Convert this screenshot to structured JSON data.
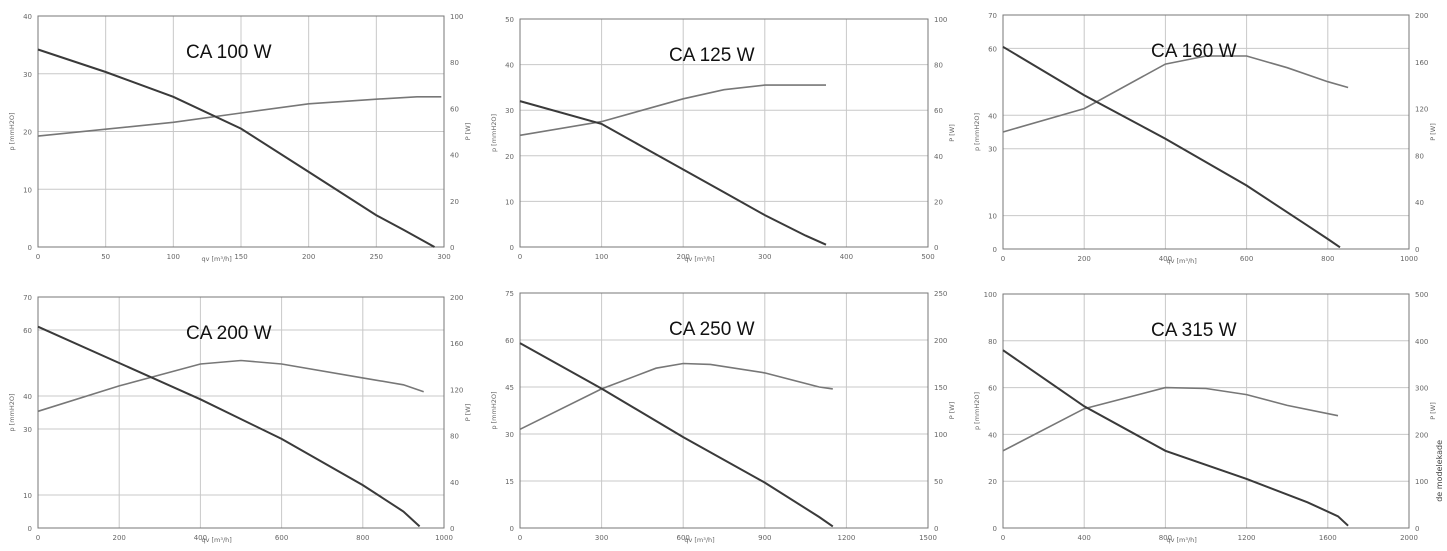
{
  "side_note": "de modelekade",
  "chart_data": [
    {
      "type": "line",
      "title": "CA 100 W",
      "xlabel": "qv [m³/h]",
      "ylabel": "p [mmH2O]",
      "y2label": "P [W]",
      "xlim": [
        0,
        300
      ],
      "ylim": [
        0,
        40
      ],
      "y2lim": [
        0,
        100
      ],
      "xticks": [
        0,
        50,
        100,
        150,
        200,
        250,
        300
      ],
      "yticks": [
        0,
        10,
        20,
        30,
        40
      ],
      "y2ticks": [
        0,
        20,
        40,
        60,
        80,
        100
      ],
      "xtick_labels": [
        "0",
        "50",
        "100",
        "150",
        "200",
        "250",
        "300"
      ],
      "ytick_labels": [
        "0",
        "10",
        "20",
        "30",
        "40"
      ],
      "y2tick_labels": [
        "0",
        "20",
        "40",
        "60",
        "80",
        "100"
      ],
      "pressure": {
        "x": [
          0,
          50,
          100,
          150,
          200,
          250,
          270,
          293
        ],
        "y": [
          34.2,
          30.3,
          26,
          20.5,
          13,
          5.5,
          3,
          0
        ]
      },
      "power": {
        "x": [
          0,
          50,
          100,
          150,
          200,
          250,
          280,
          298
        ],
        "y": [
          48,
          51,
          54,
          58,
          62,
          64,
          65,
          65
        ]
      }
    },
    {
      "type": "line",
      "title": "CA 125 W",
      "xlabel": "qv [m³/h]",
      "ylabel": "p [mmH2O]",
      "y2label": "P [W]",
      "xlim": [
        0,
        500
      ],
      "ylim": [
        0,
        50
      ],
      "y2lim": [
        0,
        100
      ],
      "xticks": [
        0,
        100,
        200,
        300,
        400,
        500
      ],
      "yticks": [
        0,
        10,
        20,
        30,
        40,
        50
      ],
      "y2ticks": [
        0,
        20,
        40,
        60,
        80,
        100
      ],
      "xtick_labels": [
        "0",
        "100",
        "200",
        "300",
        "400",
        "500"
      ],
      "ytick_labels": [
        "0",
        "10",
        "20",
        "30",
        "40",
        "50"
      ],
      "y2tick_labels": [
        "0",
        "20",
        "40",
        "60",
        "80",
        "100"
      ],
      "pressure": {
        "x": [
          0,
          100,
          150,
          200,
          250,
          300,
          350,
          375
        ],
        "y": [
          32,
          27,
          22,
          17,
          12,
          7,
          2.5,
          0.5
        ]
      },
      "power": {
        "x": [
          0,
          100,
          200,
          250,
          300,
          350,
          375
        ],
        "y": [
          49,
          55,
          65,
          69,
          71,
          71,
          71
        ]
      }
    },
    {
      "type": "line",
      "title": "CA 160 W",
      "xlabel": "qv [m³/h]",
      "ylabel": "p [mmH2O]",
      "y2label": "P [W]",
      "xlim": [
        0,
        1000
      ],
      "ylim": [
        0,
        70
      ],
      "y2lim": [
        0,
        200
      ],
      "xticks": [
        0,
        200,
        400,
        600,
        800,
        1000
      ],
      "yticks": [
        0,
        10,
        30,
        40,
        60,
        70
      ],
      "y2ticks": [
        0,
        40,
        80,
        120,
        160,
        200
      ],
      "xtick_labels": [
        "0",
        "200",
        "400",
        "600",
        "800",
        "1000"
      ],
      "ytick_labels": [
        "0",
        "10",
        "30",
        "40",
        "60",
        "70"
      ],
      "y2tick_labels": [
        "0",
        "40",
        "80",
        "120",
        "160",
        "200"
      ],
      "pressure": {
        "x": [
          0,
          200,
          400,
          600,
          750,
          800,
          830
        ],
        "y": [
          60.5,
          46,
          33,
          19,
          7,
          3,
          0.5
        ]
      },
      "power": {
        "x": [
          0,
          200,
          400,
          500,
          600,
          700,
          800,
          850
        ],
        "y": [
          100,
          120,
          158,
          165,
          165,
          155,
          143,
          138
        ]
      }
    },
    {
      "type": "line",
      "title": "CA 200 W",
      "xlabel": "qv [m³/h]",
      "ylabel": "p [mmH2O]",
      "y2label": "P [W]",
      "xlim": [
        0,
        1000
      ],
      "ylim": [
        0,
        70
      ],
      "y2lim": [
        0,
        200
      ],
      "xticks": [
        0,
        200,
        400,
        600,
        800,
        1000
      ],
      "yticks": [
        0,
        10,
        30,
        40,
        60,
        70
      ],
      "y2ticks": [
        0,
        40,
        80,
        120,
        160,
        200
      ],
      "xtick_labels": [
        "0",
        "200",
        "400",
        "600",
        "800",
        "1000"
      ],
      "ytick_labels": [
        "0",
        "10",
        "30",
        "40",
        "60",
        "70"
      ],
      "y2tick_labels": [
        "0",
        "40",
        "80",
        "120",
        "160",
        "200"
      ],
      "pressure": {
        "x": [
          0,
          200,
          400,
          600,
          800,
          850,
          900,
          940
        ],
        "y": [
          61,
          50,
          39,
          27,
          13,
          9,
          5,
          0.5
        ]
      },
      "power": {
        "x": [
          0,
          200,
          400,
          500,
          600,
          800,
          900,
          950
        ],
        "y": [
          101,
          123,
          142,
          145,
          142,
          130,
          124,
          118
        ]
      }
    },
    {
      "type": "line",
      "title": "CA 250 W",
      "xlabel": "qv [m³/h]",
      "ylabel": "p [mmH2O]",
      "y2label": "P [W]",
      "xlim": [
        0,
        1500
      ],
      "ylim": [
        0,
        75
      ],
      "y2lim": [
        0,
        250
      ],
      "xticks": [
        0,
        300,
        600,
        900,
        1200,
        1500
      ],
      "yticks": [
        0,
        15,
        30,
        45,
        60,
        75
      ],
      "y2ticks": [
        0,
        50,
        100,
        150,
        200,
        250
      ],
      "xtick_labels": [
        "0",
        "300",
        "600",
        "900",
        "1200",
        "1500"
      ],
      "ytick_labels": [
        "0",
        "15",
        "30",
        "45",
        "60",
        "75"
      ],
      "y2tick_labels": [
        "0",
        "50",
        "100",
        "150",
        "200",
        "250"
      ],
      "pressure": {
        "x": [
          0,
          300,
          600,
          900,
          1100,
          1150
        ],
        "y": [
          59,
          44.5,
          29,
          14.5,
          3.5,
          0.5
        ]
      },
      "power": {
        "x": [
          0,
          300,
          500,
          600,
          700,
          900,
          1100,
          1150
        ],
        "y": [
          105,
          148,
          170,
          175,
          174,
          165,
          150,
          148
        ]
      }
    },
    {
      "type": "line",
      "title": "CA 315 W",
      "xlabel": "qv [m³/h]",
      "ylabel": "p [mmH2O]",
      "y2label": "P [W]",
      "xlim": [
        0,
        2000
      ],
      "ylim": [
        0,
        100
      ],
      "y2lim": [
        0,
        500
      ],
      "xticks": [
        0,
        400,
        800,
        1200,
        1600,
        2000
      ],
      "yticks": [
        0,
        20,
        40,
        60,
        80,
        100
      ],
      "y2ticks": [
        0,
        100,
        200,
        300,
        400,
        500
      ],
      "xtick_labels": [
        "0",
        "400",
        "800",
        "1200",
        "1600",
        "2000"
      ],
      "ytick_labels": [
        "0",
        "20",
        "40",
        "60",
        "80",
        "100"
      ],
      "y2tick_labels": [
        "0",
        "100",
        "200",
        "300",
        "400",
        "500"
      ],
      "pressure": {
        "x": [
          0,
          400,
          800,
          1200,
          1500,
          1650,
          1700
        ],
        "y": [
          76,
          52,
          33,
          21,
          11,
          5,
          1
        ]
      },
      "power": {
        "x": [
          0,
          400,
          800,
          1000,
          1200,
          1400,
          1650
        ],
        "y": [
          165,
          255,
          300,
          298,
          285,
          262,
          240
        ]
      }
    }
  ]
}
